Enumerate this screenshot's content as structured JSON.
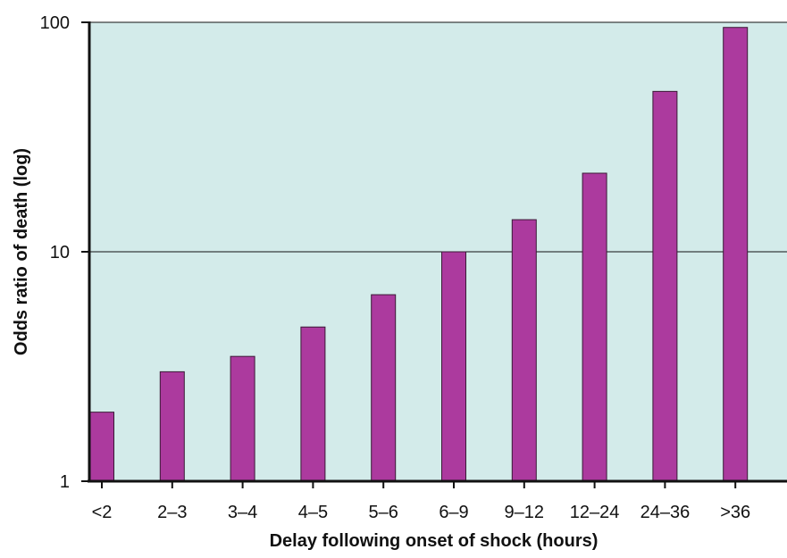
{
  "chart_data": {
    "type": "bar",
    "title": "",
    "xlabel": "Delay following onset of shock (hours)",
    "ylabel": "Odds ratio of death (log)",
    "yscale": "log",
    "ylim": [
      1,
      100
    ],
    "yticks": [
      1,
      10,
      100
    ],
    "categories": [
      "<2",
      "2–3",
      "3–4",
      "4–5",
      "5–6",
      "6–9",
      "9–12",
      "12–24",
      "24–36",
      ">36"
    ],
    "values": [
      2.0,
      3.0,
      3.5,
      4.7,
      6.5,
      10,
      13.8,
      22,
      50,
      95
    ],
    "grid": "horizontal at y=10",
    "legend": "none"
  },
  "colors": {
    "bar": "#ac3a9e",
    "bar_stroke": "#3a1a36",
    "plot_background": "#d3ebea",
    "axis": "#111111"
  }
}
